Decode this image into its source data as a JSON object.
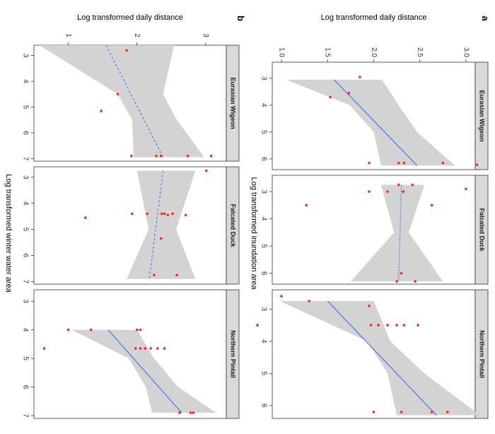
{
  "chart_data": [
    {
      "id": "a",
      "type": "scatter",
      "panel_label": "a",
      "ylabel": "Log transformed daily distance",
      "xlabel": "Log transformed inundation area",
      "xlim": [
        2.4,
        6.4
      ],
      "ylim": [
        0.9,
        3.1
      ],
      "x_ticks": [
        3,
        4,
        5,
        6
      ],
      "y_ticks": [
        1.0,
        1.5,
        2.0,
        2.5,
        3.0
      ],
      "y_tick_labels": [
        "1.0",
        "1.5",
        "2.0",
        "2.5",
        "3.0"
      ],
      "facets": [
        {
          "name": "Eurasian Wigeon",
          "line_style": "solid",
          "line": {
            "x": [
              3.05,
              6.25
            ],
            "y": [
              1.57,
              2.47
            ]
          },
          "band": {
            "x": [
              3.05,
              4.0,
              5.0,
              6.25
            ],
            "lower": [
              1.05,
              1.74,
              2.0,
              2.08
            ],
            "upper": [
              2.09,
              2.27,
              2.47,
              2.88
            ]
          },
          "points": [
            [
              2.95,
              1.85
            ],
            [
              3.55,
              1.73
            ],
            [
              3.7,
              1.53
            ],
            [
              6.15,
              1.95
            ],
            [
              6.15,
              2.27
            ],
            [
              6.15,
              2.33
            ],
            [
              6.15,
              2.75
            ],
            [
              6.22,
              3.12
            ]
          ]
        },
        {
          "name": "Falcated Duck",
          "line_style": "dotted",
          "line": {
            "x": [
              2.75,
              6.3
            ],
            "y": [
              2.3,
              2.27
            ]
          },
          "band": {
            "x": [
              2.75,
              4.5,
              6.3
            ],
            "lower": [
              2.08,
              2.22,
              1.75
            ],
            "upper": [
              2.55,
              2.38,
              2.75
            ]
          },
          "points": [
            [
              2.75,
              2.27
            ],
            [
              2.75,
              2.42
            ],
            [
              3.0,
              1.95
            ],
            [
              3.0,
              2.15
            ],
            [
              3.0,
              2.32
            ],
            [
              2.9,
              3.0
            ],
            [
              3.5,
              1.27
            ],
            [
              3.5,
              2.63
            ],
            [
              6.0,
              2.3
            ],
            [
              6.3,
              2.25
            ],
            [
              6.3,
              2.45
            ]
          ]
        },
        {
          "name": "Northern Pintail",
          "line_style": "solid",
          "line": {
            "x": [
              2.75,
              6.3
            ],
            "y": [
              1.5,
              2.68
            ]
          },
          "band": {
            "x": [
              2.75,
              4.0,
              5.0,
              6.3
            ],
            "lower": [
              0.98,
              1.93,
              2.15,
              2.25
            ],
            "upper": [
              2.0,
              2.18,
              2.55,
              3.15
            ]
          },
          "points": [
            [
              2.6,
              1.0
            ],
            [
              2.75,
              1.3
            ],
            [
              2.9,
              1.95
            ],
            [
              3.5,
              0.74
            ],
            [
              3.5,
              1.97
            ],
            [
              3.5,
              2.05
            ],
            [
              3.5,
              2.15
            ],
            [
              3.5,
              2.25
            ],
            [
              3.5,
              2.33
            ],
            [
              3.5,
              2.48
            ],
            [
              6.2,
              2.0
            ],
            [
              6.2,
              2.3
            ],
            [
              6.2,
              2.63
            ],
            [
              6.2,
              2.8
            ]
          ]
        }
      ]
    },
    {
      "id": "b",
      "type": "scatter",
      "panel_label": "b",
      "ylabel": "Log transformed daily distance",
      "xlabel": "Log transformed winter water area",
      "xlim": [
        2.6,
        7.1
      ],
      "ylim": [
        0.5,
        3.3
      ],
      "x_ticks": [
        3,
        4,
        5,
        6,
        7
      ],
      "y_ticks": [
        1,
        2,
        3
      ],
      "y_tick_labels": [
        "1",
        "2",
        "3"
      ],
      "facets": [
        {
          "name": "Eurasian Wigeon",
          "line_style": "dashed",
          "line": {
            "x": [
              2.6,
              6.95
            ],
            "y": [
              1.55,
              2.38
            ]
          },
          "band": {
            "x": [
              2.6,
              4.5,
              5.5,
              6.95
            ],
            "lower": [
              0.58,
              1.72,
              1.93,
              1.95
            ],
            "upper": [
              2.54,
              2.38,
              2.58,
              2.98
            ]
          },
          "points": [
            [
              2.8,
              1.85
            ],
            [
              4.5,
              1.72
            ],
            [
              5.15,
              1.48
            ],
            [
              6.9,
              1.92
            ],
            [
              6.9,
              2.28
            ],
            [
              6.9,
              2.35
            ],
            [
              6.9,
              2.74
            ],
            [
              6.9,
              3.08
            ]
          ]
        },
        {
          "name": "Falcated Duck",
          "line_style": "dashed",
          "line": {
            "x": [
              2.75,
              6.9
            ],
            "y": [
              2.38,
              2.18
            ]
          },
          "band": {
            "x": [
              2.75,
              5.0,
              6.9
            ],
            "lower": [
              2.0,
              2.17,
              1.85
            ],
            "upper": [
              2.85,
              2.57,
              2.85
            ]
          },
          "points": [
            [
              2.75,
              3.01
            ],
            [
              4.4,
              2.36
            ],
            [
              4.4,
              2.4
            ],
            [
              4.4,
              2.52
            ],
            [
              4.4,
              2.15
            ],
            [
              4.4,
              1.93
            ],
            [
              4.45,
              2.71
            ],
            [
              4.55,
              1.25
            ],
            [
              4.45,
              2.45
            ],
            [
              5.35,
              2.35
            ],
            [
              6.75,
              2.25
            ],
            [
              6.75,
              2.58
            ]
          ]
        },
        {
          "name": "Northern Pintail",
          "line_style": "solid",
          "line": {
            "x": [
              4.0,
              6.9
            ],
            "y": [
              1.58,
              2.65
            ]
          },
          "band": {
            "x": [
              4.0,
              5.0,
              6.0,
              6.9
            ],
            "lower": [
              1.05,
              1.88,
              2.13,
              2.22
            ],
            "upper": [
              2.0,
              2.25,
              2.6,
              3.15
            ]
          },
          "points": [
            [
              4.0,
              1.0
            ],
            [
              4.0,
              1.33
            ],
            [
              4.0,
              2.0
            ],
            [
              4.0,
              2.05
            ],
            [
              4.65,
              0.65
            ],
            [
              4.65,
              1.98
            ],
            [
              4.65,
              2.05
            ],
            [
              4.65,
              2.12
            ],
            [
              4.65,
              2.2
            ],
            [
              4.65,
              2.3
            ],
            [
              4.65,
              2.4
            ],
            [
              6.9,
              2.62
            ],
            [
              6.9,
              2.78
            ],
            [
              6.9,
              2.82
            ]
          ]
        }
      ]
    }
  ],
  "colors": {
    "band": "#d3d3d3",
    "line": "#3d6ff0",
    "point": "#ff2222",
    "strip": "#d9d9d9"
  }
}
